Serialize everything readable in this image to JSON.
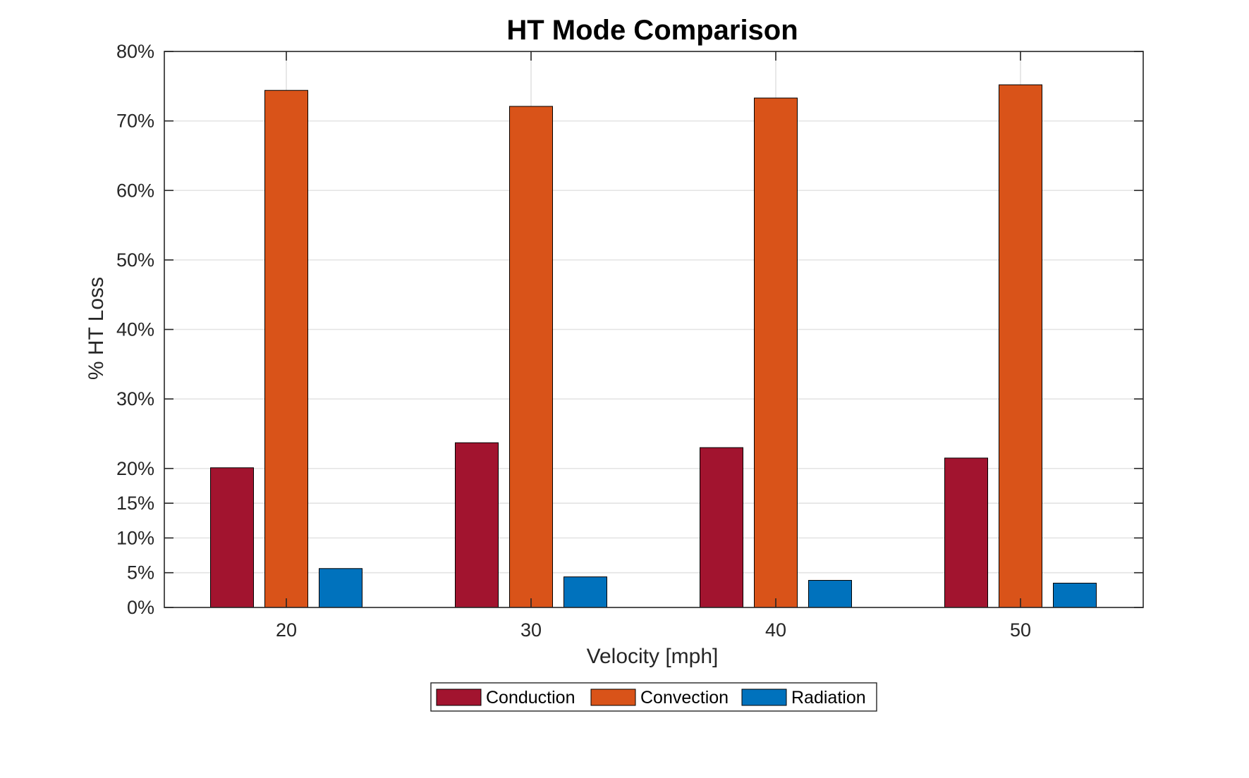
{
  "chart_data": {
    "type": "bar",
    "title": "HT Mode Comparison",
    "xlabel": "Velocity [mph]",
    "ylabel": "% HT Loss",
    "categories": [
      "20",
      "30",
      "40",
      "50"
    ],
    "series": [
      {
        "name": "Conduction",
        "values": [
          20.1,
          23.7,
          23.0,
          21.5
        ],
        "color": "#A2142F"
      },
      {
        "name": "Convection",
        "values": [
          74.4,
          72.1,
          73.3,
          75.2
        ],
        "color": "#D95319"
      },
      {
        "name": "Radiation",
        "values": [
          5.6,
          4.4,
          3.9,
          3.5
        ],
        "color": "#0072BD"
      }
    ],
    "ylim": [
      0,
      80
    ],
    "yticks": [
      0,
      5,
      10,
      15,
      20,
      30,
      40,
      50,
      60,
      70,
      80
    ],
    "ytick_labels": [
      "0%",
      "5%",
      "10%",
      "15%",
      "20%",
      "30%",
      "40%",
      "50%",
      "60%",
      "70%",
      "80%"
    ],
    "grid": true,
    "legend": {
      "placement": "bottom-center-outside",
      "orientation": "horizontal"
    }
  }
}
